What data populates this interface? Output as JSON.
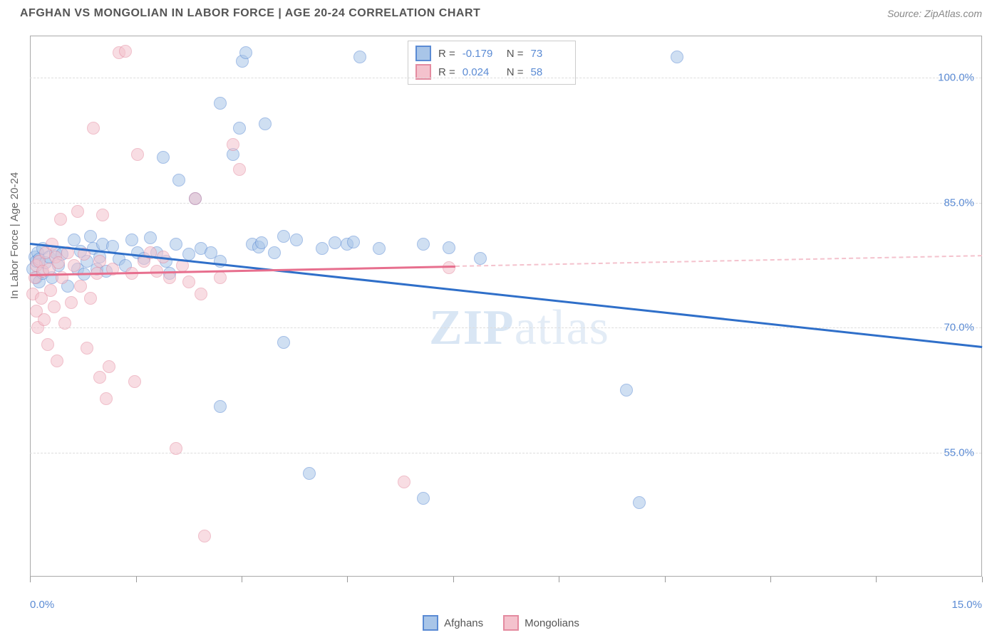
{
  "header": {
    "title": "AFGHAN VS MONGOLIAN IN LABOR FORCE | AGE 20-24 CORRELATION CHART",
    "source": "Source: ZipAtlas.com"
  },
  "watermark": {
    "part1": "ZIP",
    "part2": "atlas"
  },
  "chart": {
    "type": "scatter",
    "y_axis_title": "In Labor Force | Age 20-24",
    "background_color": "#ffffff",
    "grid_color": "#dddddd",
    "axis_color": "#aaaaaa",
    "tick_label_color": "#5b8bd4",
    "xlim": [
      0,
      15
    ],
    "ylim": [
      40,
      105
    ],
    "x_labels": {
      "min": "0.0%",
      "max": "15.0%"
    },
    "y_gridlines": [
      {
        "value": 100,
        "label": "100.0%"
      },
      {
        "value": 85,
        "label": "85.0%"
      },
      {
        "value": 70,
        "label": "70.0%"
      },
      {
        "value": 55,
        "label": "55.0%"
      }
    ],
    "x_ticks": [
      0,
      1.67,
      3.33,
      5.0,
      6.67,
      8.33,
      10.0,
      11.67,
      13.33,
      15.0
    ],
    "point_radius": 9,
    "point_opacity": 0.55,
    "series": [
      {
        "name": "Afghans",
        "fill_color": "#a8c5e8",
        "stroke_color": "#5b8bd4",
        "line_color": "#2f6fc9",
        "correlation_r": "-0.179",
        "correlation_n": "73",
        "trend": {
          "x0": 0,
          "y0": 80.2,
          "x1": 15,
          "y1": 67.8,
          "solid_until_x": 15
        },
        "points": [
          [
            0.05,
            77
          ],
          [
            0.08,
            78.5
          ],
          [
            0.1,
            76
          ],
          [
            0.1,
            78
          ],
          [
            0.12,
            79
          ],
          [
            0.15,
            75.5
          ],
          [
            0.15,
            78.2
          ],
          [
            0.2,
            76.5
          ],
          [
            0.2,
            79.5
          ],
          [
            0.25,
            77.8
          ],
          [
            0.3,
            78.5
          ],
          [
            0.35,
            76
          ],
          [
            0.4,
            79
          ],
          [
            0.45,
            77.5
          ],
          [
            0.5,
            78.8
          ],
          [
            0.6,
            75
          ],
          [
            0.7,
            80.5
          ],
          [
            0.75,
            77
          ],
          [
            0.8,
            79.2
          ],
          [
            0.85,
            76.4
          ],
          [
            0.9,
            78
          ],
          [
            0.95,
            81
          ],
          [
            1.0,
            79.5
          ],
          [
            1.05,
            77
          ],
          [
            1.1,
            78.5
          ],
          [
            1.15,
            80
          ],
          [
            1.2,
            76.8
          ],
          [
            1.3,
            79.8
          ],
          [
            1.4,
            78.2
          ],
          [
            1.5,
            77.5
          ],
          [
            1.6,
            80.5
          ],
          [
            1.7,
            79
          ],
          [
            1.8,
            78.3
          ],
          [
            1.9,
            80.8
          ],
          [
            2.0,
            79
          ],
          [
            2.1,
            90.5
          ],
          [
            2.15,
            78
          ],
          [
            2.2,
            76.5
          ],
          [
            2.3,
            80
          ],
          [
            2.35,
            87.7
          ],
          [
            2.5,
            78.8
          ],
          [
            2.6,
            85.5
          ],
          [
            2.7,
            79.5
          ],
          [
            2.85,
            79
          ],
          [
            3.0,
            78
          ],
          [
            3.0,
            60.5
          ],
          [
            3.0,
            97
          ],
          [
            3.2,
            90.8
          ],
          [
            3.3,
            94
          ],
          [
            3.35,
            102
          ],
          [
            3.4,
            103
          ],
          [
            3.5,
            80
          ],
          [
            3.6,
            79.7
          ],
          [
            3.65,
            80.2
          ],
          [
            3.7,
            94.5
          ],
          [
            3.85,
            79
          ],
          [
            4.0,
            81
          ],
          [
            4.0,
            68.2
          ],
          [
            4.2,
            80.5
          ],
          [
            4.4,
            52.5
          ],
          [
            4.6,
            79.5
          ],
          [
            4.8,
            80.2
          ],
          [
            5.0,
            80
          ],
          [
            5.1,
            80.3
          ],
          [
            5.2,
            102.5
          ],
          [
            5.5,
            79.5
          ],
          [
            6.2,
            80
          ],
          [
            6.2,
            49.5
          ],
          [
            6.6,
            79.6
          ],
          [
            7.1,
            78.3
          ],
          [
            9.4,
            62.5
          ],
          [
            9.6,
            49
          ],
          [
            10.2,
            102.5
          ]
        ]
      },
      {
        "name": "Mongolians",
        "fill_color": "#f4c2cd",
        "stroke_color": "#e48ba0",
        "line_color": "#e76f8e",
        "correlation_r": "0.024",
        "correlation_n": "58",
        "trend": {
          "x0": 0,
          "y0": 76.4,
          "x1": 15,
          "y1": 78.7,
          "solid_until_x": 6.7
        },
        "points": [
          [
            0.05,
            74
          ],
          [
            0.08,
            76
          ],
          [
            0.1,
            72
          ],
          [
            0.1,
            77.5
          ],
          [
            0.12,
            70
          ],
          [
            0.15,
            78
          ],
          [
            0.18,
            73.5
          ],
          [
            0.2,
            76.8
          ],
          [
            0.22,
            71
          ],
          [
            0.25,
            79
          ],
          [
            0.28,
            68
          ],
          [
            0.3,
            77
          ],
          [
            0.33,
            74.5
          ],
          [
            0.35,
            80
          ],
          [
            0.38,
            72.5
          ],
          [
            0.4,
            78.5
          ],
          [
            0.43,
            66
          ],
          [
            0.45,
            77.8
          ],
          [
            0.48,
            83
          ],
          [
            0.5,
            76
          ],
          [
            0.55,
            70.5
          ],
          [
            0.6,
            79
          ],
          [
            0.65,
            73
          ],
          [
            0.7,
            77.5
          ],
          [
            0.75,
            84
          ],
          [
            0.8,
            75
          ],
          [
            0.85,
            78.8
          ],
          [
            0.9,
            67.5
          ],
          [
            0.95,
            73.5
          ],
          [
            1.0,
            94
          ],
          [
            1.05,
            76.5
          ],
          [
            1.1,
            78
          ],
          [
            1.1,
            64
          ],
          [
            1.15,
            83.5
          ],
          [
            1.2,
            61.5
          ],
          [
            1.25,
            65.3
          ],
          [
            1.3,
            77
          ],
          [
            1.4,
            103
          ],
          [
            1.5,
            103.2
          ],
          [
            1.6,
            76.5
          ],
          [
            1.65,
            63.5
          ],
          [
            1.7,
            90.8
          ],
          [
            1.8,
            78
          ],
          [
            1.9,
            79
          ],
          [
            2.0,
            76.8
          ],
          [
            2.1,
            78.5
          ],
          [
            2.2,
            76
          ],
          [
            2.3,
            55.5
          ],
          [
            2.4,
            77.5
          ],
          [
            2.5,
            75.5
          ],
          [
            2.6,
            85.5
          ],
          [
            2.7,
            74
          ],
          [
            2.75,
            45
          ],
          [
            3.0,
            76
          ],
          [
            3.2,
            92
          ],
          [
            3.3,
            89
          ],
          [
            5.9,
            51.5
          ],
          [
            6.6,
            77.2
          ]
        ]
      }
    ],
    "corr_legend_labels": {
      "r": "R =",
      "n": "N ="
    },
    "bottom_legend": [
      {
        "label": "Afghans",
        "fill": "#a8c5e8",
        "stroke": "#5b8bd4"
      },
      {
        "label": "Mongolians",
        "fill": "#f4c2cd",
        "stroke": "#e48ba0"
      }
    ]
  }
}
